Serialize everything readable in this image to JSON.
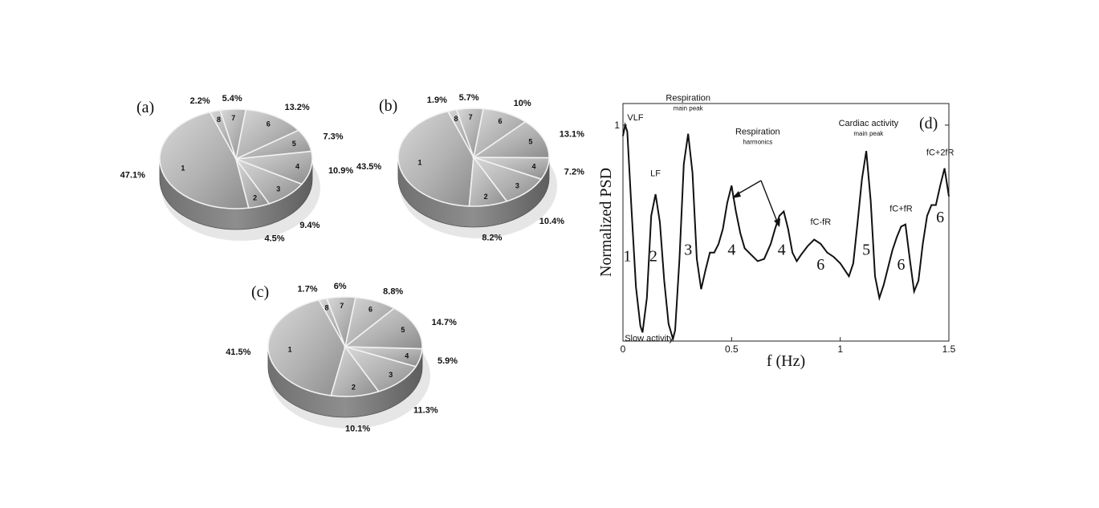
{
  "chart_data": [
    {
      "type": "pie",
      "panel_label": "(a)",
      "slices": [
        {
          "index": "1",
          "value": 47.1,
          "label": "47.1%"
        },
        {
          "index": "2",
          "value": 4.5,
          "label": "4.5%"
        },
        {
          "index": "3",
          "value": 9.4,
          "label": "9.4%"
        },
        {
          "index": "4",
          "value": 10.9,
          "label": "10.9%"
        },
        {
          "index": "5",
          "value": 7.3,
          "label": "7.3%"
        },
        {
          "index": "6",
          "value": 13.2,
          "label": "13.2%"
        },
        {
          "index": "7",
          "value": 5.4,
          "label": "5.4%"
        },
        {
          "index": "8",
          "value": 2.2,
          "label": "2.2%"
        }
      ]
    },
    {
      "type": "pie",
      "panel_label": "(b)",
      "slices": [
        {
          "index": "1",
          "value": 43.5,
          "label": "43.5%"
        },
        {
          "index": "2",
          "value": 8.2,
          "label": "8.2%"
        },
        {
          "index": "3",
          "value": 10.4,
          "label": "10.4%"
        },
        {
          "index": "4",
          "value": 7.2,
          "label": "7.2%"
        },
        {
          "index": "5",
          "value": 13.1,
          "label": "13.1%"
        },
        {
          "index": "6",
          "value": 10,
          "label": "10%"
        },
        {
          "index": "7",
          "value": 5.7,
          "label": "5.7%"
        },
        {
          "index": "8",
          "value": 1.9,
          "label": "1.9%"
        }
      ]
    },
    {
      "type": "pie",
      "panel_label": "(c)",
      "slices": [
        {
          "index": "1",
          "value": 41.5,
          "label": "41.5%"
        },
        {
          "index": "2",
          "value": 10.1,
          "label": "10.1%"
        },
        {
          "index": "3",
          "value": 11.3,
          "label": "11.3%"
        },
        {
          "index": "4",
          "value": 5.9,
          "label": "5.9%"
        },
        {
          "index": "5",
          "value": 14.7,
          "label": "14.7%"
        },
        {
          "index": "6",
          "value": 8.8,
          "label": "8.8%"
        },
        {
          "index": "7",
          "value": 6,
          "label": "6%"
        },
        {
          "index": "8",
          "value": 1.7,
          "label": "1.7%"
        }
      ]
    },
    {
      "type": "line",
      "panel_label": "(d)",
      "xlabel": "f (Hz)",
      "ylabel": "Normalized PSD",
      "xlim": [
        0,
        1.5
      ],
      "ylim": [
        0,
        1.1
      ],
      "xticks": [
        "0",
        "0.5",
        "1",
        "1.5"
      ],
      "yticks": [
        "1"
      ],
      "x": [
        0,
        0.01,
        0.02,
        0.04,
        0.06,
        0.08,
        0.09,
        0.11,
        0.13,
        0.15,
        0.17,
        0.19,
        0.21,
        0.23,
        0.24,
        0.26,
        0.28,
        0.3,
        0.32,
        0.34,
        0.36,
        0.38,
        0.4,
        0.42,
        0.44,
        0.46,
        0.48,
        0.5,
        0.52,
        0.54,
        0.56,
        0.59,
        0.62,
        0.65,
        0.68,
        0.7,
        0.72,
        0.74,
        0.76,
        0.78,
        0.8,
        0.82,
        0.85,
        0.88,
        0.91,
        0.94,
        0.97,
        1.0,
        1.02,
        1.04,
        1.06,
        1.08,
        1.1,
        1.12,
        1.14,
        1.16,
        1.18,
        1.2,
        1.22,
        1.24,
        1.26,
        1.28,
        1.3,
        1.32,
        1.34,
        1.36,
        1.38,
        1.4,
        1.42,
        1.44,
        1.46,
        1.48,
        1.5
      ],
      "y": [
        0.95,
        1.0,
        0.97,
        0.6,
        0.25,
        0.07,
        0.04,
        0.2,
        0.58,
        0.68,
        0.55,
        0.28,
        0.08,
        0.01,
        0.05,
        0.38,
        0.82,
        0.96,
        0.78,
        0.38,
        0.24,
        0.33,
        0.41,
        0.41,
        0.45,
        0.52,
        0.64,
        0.72,
        0.6,
        0.5,
        0.43,
        0.4,
        0.37,
        0.38,
        0.45,
        0.52,
        0.58,
        0.6,
        0.52,
        0.41,
        0.37,
        0.4,
        0.44,
        0.47,
        0.45,
        0.41,
        0.39,
        0.36,
        0.33,
        0.3,
        0.36,
        0.55,
        0.75,
        0.88,
        0.65,
        0.3,
        0.2,
        0.26,
        0.34,
        0.42,
        0.48,
        0.53,
        0.54,
        0.38,
        0.23,
        0.28,
        0.45,
        0.58,
        0.63,
        0.63,
        0.72,
        0.8,
        0.67
      ],
      "annotations": [
        {
          "text": "VLF",
          "x": 0.02,
          "y": 1.0
        },
        {
          "text": "Slow activity",
          "x": 0.12,
          "y": 0.03
        },
        {
          "text": "LF",
          "x": 0.15,
          "y": 0.72
        },
        {
          "text": "Respiration",
          "sub": "main peak",
          "x": 0.3,
          "y": 0.98
        },
        {
          "text": "Respiration",
          "sub": "harmonics",
          "x": 0.62,
          "y": 0.8
        },
        {
          "text": "Cardiac activity",
          "sub": "main peak",
          "x": 1.13,
          "y": 0.9
        },
        {
          "text": "fC-fR",
          "x": 0.91,
          "y": 0.51
        },
        {
          "text": "fC+fR",
          "x": 1.28,
          "y": 0.57
        },
        {
          "text": "fC+2fR",
          "x": 1.46,
          "y": 0.83
        }
      ],
      "band_numbers": [
        {
          "text": "1",
          "x": 0.02,
          "y": 0.37
        },
        {
          "text": "2",
          "x": 0.14,
          "y": 0.37
        },
        {
          "text": "3",
          "x": 0.3,
          "y": 0.4
        },
        {
          "text": "4",
          "x": 0.5,
          "y": 0.4
        },
        {
          "text": "4",
          "x": 0.73,
          "y": 0.4
        },
        {
          "text": "6",
          "x": 0.91,
          "y": 0.33
        },
        {
          "text": "5",
          "x": 1.12,
          "y": 0.4
        },
        {
          "text": "6",
          "x": 1.28,
          "y": 0.33
        },
        {
          "text": "6",
          "x": 1.46,
          "y": 0.55
        }
      ]
    }
  ]
}
